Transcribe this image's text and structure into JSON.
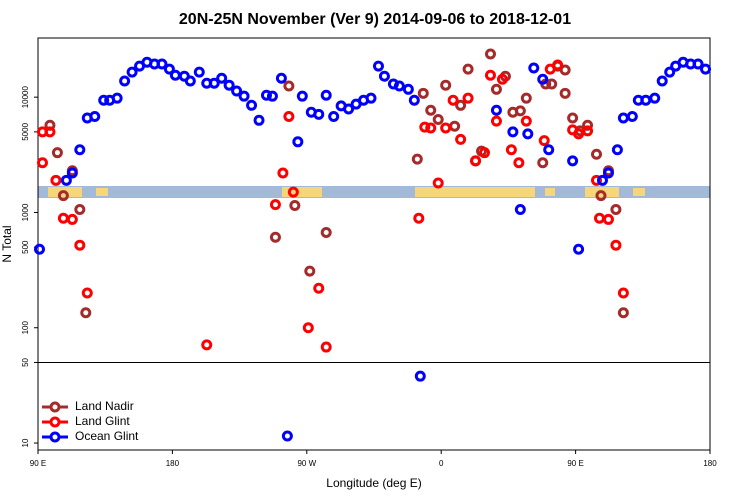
{
  "chart_data": {
    "type": "scatter",
    "title": "20N-25N November (Ver 9)   2014-09-06 to 2018-12-01",
    "x_label": "Longitude (deg E)",
    "y_label": "N Total",
    "log_y": true,
    "reference_line": 50,
    "legend": "bottom-left",
    "xlim": [
      90,
      540
    ],
    "ylim": [
      8.7,
      32600
    ],
    "xticks": [
      {
        "value": 90,
        "label": "90 E"
      },
      {
        "value": 180,
        "label": "180"
      },
      {
        "value": 270,
        "label": "90 W"
      },
      {
        "value": 360,
        "label": "0"
      },
      {
        "value": 450,
        "label": "90 E"
      },
      {
        "value": 540,
        "label": "180"
      }
    ],
    "yticks": [
      10,
      50,
      100,
      500,
      1000,
      5000,
      10000
    ],
    "series": [
      {
        "name": "Land Nadir",
        "color": "#a52a2a",
        "x": [
          98,
          103,
          107,
          113,
          118,
          122,
          249,
          258,
          262,
          272,
          283,
          344,
          348,
          353,
          358,
          363,
          369,
          373,
          378,
          383,
          387,
          393,
          397,
          403,
          408,
          413,
          417,
          428,
          430,
          434,
          438,
          443,
          443,
          448,
          453,
          458,
          464,
          467,
          472,
          477,
          482
        ],
        "values": [
          5700,
          3300,
          1400,
          2300,
          1060,
          135,
          610,
          12500,
          1150,
          310,
          670,
          2900,
          10800,
          7700,
          6400,
          12700,
          5600,
          8500,
          17500,
          2800,
          3400,
          23700,
          11700,
          15200,
          7400,
          7600,
          9800,
          2700,
          13000,
          13000,
          18600,
          17200,
          10800,
          6600,
          5100,
          5700,
          3200,
          1400,
          2300,
          1060,
          135
        ]
      },
      {
        "name": "Land Glint",
        "color": "#ff0000",
        "x": [
          93,
          98,
          93,
          102,
          107,
          113,
          118,
          123,
          203,
          249,
          254,
          258,
          261,
          271,
          278,
          283,
          345,
          358,
          349,
          353,
          363,
          368,
          373,
          378,
          383,
          389,
          397,
          393,
          401,
          407,
          412,
          417,
          429,
          433,
          438,
          448,
          452,
          458,
          464,
          466,
          472,
          477,
          482
        ],
        "values": [
          5000,
          5000,
          2700,
          1900,
          890,
          870,
          520,
          200,
          71,
          1170,
          2200,
          6800,
          1500,
          100,
          220,
          68,
          890,
          1800,
          5500,
          5400,
          5400,
          9400,
          4300,
          9800,
          2800,
          3300,
          6200,
          15500,
          14300,
          3500,
          2700,
          6200,
          4200,
          17500,
          19000,
          5200,
          4800,
          5100,
          1900,
          890,
          870,
          520,
          200
        ]
      },
      {
        "name": "Ocean Glint",
        "color": "#0000ff",
        "x": [
          91,
          109,
          113,
          118,
          123,
          128,
          134,
          138,
          143,
          148,
          153,
          158,
          163,
          168,
          173,
          178,
          182,
          188,
          192,
          198,
          203,
          208,
          213,
          218,
          223,
          228,
          233,
          238,
          243,
          247,
          253,
          257,
          264,
          267,
          273,
          278,
          283,
          288,
          293,
          298,
          303,
          308,
          313,
          318,
          322,
          328,
          332,
          338,
          342,
          346,
          397,
          408,
          413,
          418,
          422,
          428,
          432,
          448,
          452,
          468,
          472,
          478,
          482,
          488,
          492,
          497,
          503,
          508,
          513,
          517,
          522,
          527,
          532,
          537
        ],
        "values": [
          480,
          1900,
          2200,
          3500,
          6600,
          6800,
          9400,
          9400,
          9800,
          13800,
          16500,
          18600,
          20100,
          19400,
          19400,
          17500,
          15500,
          15200,
          13800,
          16500,
          13200,
          13200,
          14600,
          12700,
          11300,
          10200,
          8500,
          6300,
          10400,
          10200,
          14600,
          11.5,
          4100,
          10200,
          7400,
          7100,
          10400,
          6800,
          8400,
          7900,
          8700,
          9400,
          9800,
          18600,
          15200,
          13000,
          12500,
          11700,
          9400,
          38,
          7700,
          5000,
          1060,
          4800,
          17900,
          14300,
          3500,
          2800,
          480,
          1900,
          2200,
          3500,
          6600,
          6800,
          9400,
          9400,
          9800,
          13800,
          16500,
          18600,
          20100,
          19400,
          19400,
          17500
        ]
      }
    ]
  }
}
